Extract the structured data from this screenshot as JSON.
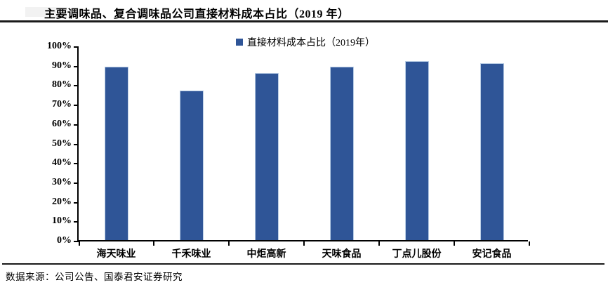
{
  "title": "主要调味品、复合调味品公司直接材料成本占比（2019 年）",
  "legend": {
    "label": "直接材料成本占比（2019年）"
  },
  "source": "数据来源：公司公告、国泰君安证券研究",
  "colors": {
    "bar": "#2F5597",
    "bar_border": "#B9CDE5",
    "axis": "#000000",
    "rule": "#1a1a1a"
  },
  "chart_data": {
    "type": "bar",
    "title": "主要调味品、复合调味品公司直接材料成本占比（2019 年）",
    "categories": [
      "海天味业",
      "千禾味业",
      "中炬高新",
      "天味食品",
      "丁点儿股份",
      "安记食品"
    ],
    "values": [
      89,
      77,
      86,
      89,
      92,
      91
    ],
    "unit": "%",
    "xlabel": "",
    "ylabel": "",
    "ylim": [
      0,
      100
    ],
    "ytick_step": 10,
    "yticks": [
      "0%",
      "10%",
      "20%",
      "30%",
      "40%",
      "50%",
      "60%",
      "70%",
      "80%",
      "90%",
      "100%"
    ],
    "grid": false,
    "legend_entries": [
      "直接材料成本占比（2019年）"
    ],
    "legend_position": "top-center"
  }
}
